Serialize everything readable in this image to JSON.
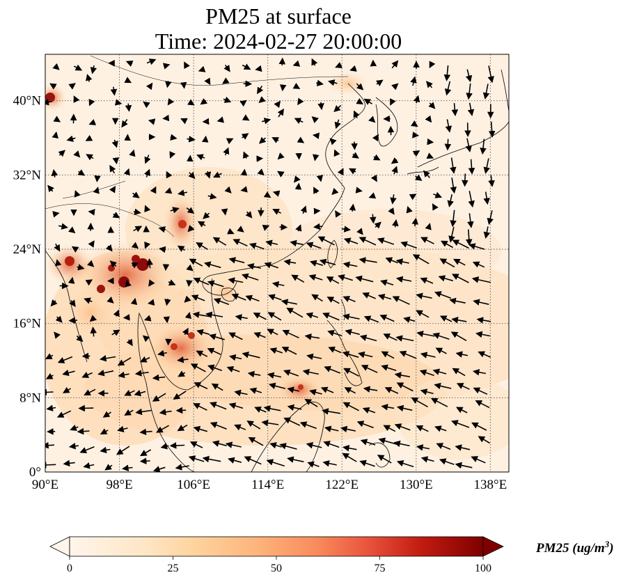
{
  "title": {
    "line1": "PM25 at surface",
    "line2": "Time: 2024-02-27 20:00:00"
  },
  "map": {
    "lon_range": [
      90,
      140
    ],
    "lat_range": [
      0,
      45
    ],
    "lon_ticks": [
      {
        "value": 90,
        "label": "90°E"
      },
      {
        "value": 98,
        "label": "98°E"
      },
      {
        "value": 106,
        "label": "106°E"
      },
      {
        "value": 114,
        "label": "114°E"
      },
      {
        "value": 122,
        "label": "122°E"
      },
      {
        "value": 130,
        "label": "130°E"
      },
      {
        "value": 138,
        "label": "138°E"
      }
    ],
    "lat_ticks": [
      {
        "value": 0,
        "label": "0°"
      },
      {
        "value": 8,
        "label": "8°N"
      },
      {
        "value": 16,
        "label": "16°N"
      },
      {
        "value": 24,
        "label": "24°N"
      },
      {
        "value": 32,
        "label": "32°N"
      },
      {
        "value": 40,
        "label": "40°N"
      }
    ],
    "gridlines": true,
    "wind_vectors": true
  },
  "colorbar": {
    "title": "PM25 (ug/m",
    "title_sup": "3",
    "title_end": ")",
    "min": 0,
    "max": 100,
    "ticks": [
      {
        "value": 0,
        "label": "0"
      },
      {
        "value": 25,
        "label": "25"
      },
      {
        "value": 50,
        "label": "50"
      },
      {
        "value": 75,
        "label": "75"
      },
      {
        "value": 100,
        "label": "100"
      }
    ],
    "colors": [
      "#fff5eb",
      "#fdd49e",
      "#fdbb84",
      "#fc8d59",
      "#ef6548",
      "#d7301f",
      "#b30000",
      "#7f0000"
    ]
  }
}
